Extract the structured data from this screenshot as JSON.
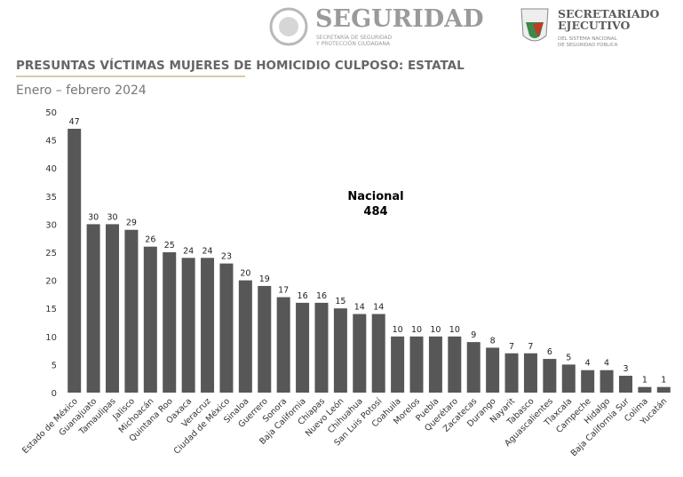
{
  "header": {
    "logo1_title": "SEGURIDAD",
    "logo1_sub1": "SECRETARÍA DE SEGURIDAD",
    "logo1_sub2": "Y PROTECCIÓN CIUDADANA",
    "logo2_title1": "SECRETARIADO",
    "logo2_title2": "EJECUTIVO",
    "logo2_sub1": "DEL SISTEMA NACIONAL",
    "logo2_sub2": "DE SEGURIDAD PÚBLICA"
  },
  "chart_data": {
    "type": "bar",
    "title": "PRESUNTAS VÍCTIMAS MUJERES DE HOMICIDIO CULPOSO: ESTATAL",
    "subtitle": "Enero – febrero 2024",
    "annotation": {
      "label": "Nacional",
      "value": 484
    },
    "categories": [
      "Estado de México",
      "Guanajuato",
      "Tamaulipas",
      "Jalisco",
      "Michoacán",
      "Quintana Roo",
      "Oaxaca",
      "Veracruz",
      "Ciudad de México",
      "Sinaloa",
      "Guerrero",
      "Sonora",
      "Baja California",
      "Chiapas",
      "Nuevo León",
      "Chihuahua",
      "San Luis Potosí",
      "Coahuila",
      "Morelos",
      "Puebla",
      "Querétaro",
      "Zacatecas",
      "Durango",
      "Nayarit",
      "Tabasco",
      "Aguascalientes",
      "Tlaxcala",
      "Campeche",
      "Hidalgo",
      "Baja California Sur",
      "Colima",
      "Yucatán"
    ],
    "values": [
      47,
      30,
      30,
      29,
      26,
      25,
      24,
      24,
      23,
      20,
      19,
      17,
      16,
      16,
      15,
      14,
      14,
      10,
      10,
      10,
      10,
      9,
      8,
      7,
      7,
      6,
      5,
      4,
      4,
      3,
      1,
      1
    ],
    "color": "#575757",
    "ylim": [
      0,
      50
    ],
    "yticks": [
      0,
      5,
      10,
      15,
      20,
      25,
      30,
      35,
      40,
      45,
      50
    ]
  }
}
